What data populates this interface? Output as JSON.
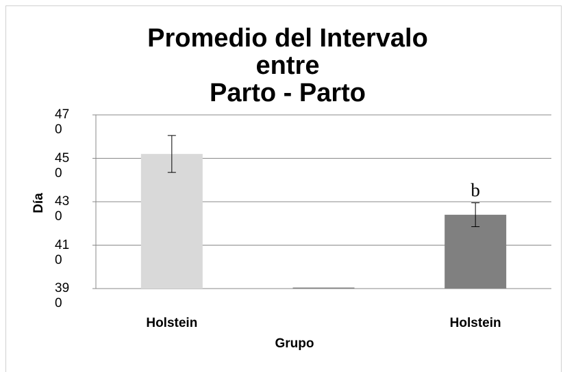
{
  "chart_data": {
    "type": "bar",
    "title": "Promedio del Intervalo\nentre\nParto - Parto",
    "x_label": "Grupo",
    "y_label": "Día",
    "categories": [
      "Holstein",
      null,
      "Holstein"
    ],
    "values": [
      452,
      390,
      424
    ],
    "errors": [
      8.5,
      0,
      5.5
    ],
    "colors": [
      "#d9d9d9",
      "#808080",
      "#808080"
    ],
    "bar_labels": [
      null,
      null,
      "b"
    ],
    "ylim": [
      390,
      470
    ],
    "yticks": [
      390,
      410,
      430,
      450,
      470
    ],
    "grid": true
  }
}
